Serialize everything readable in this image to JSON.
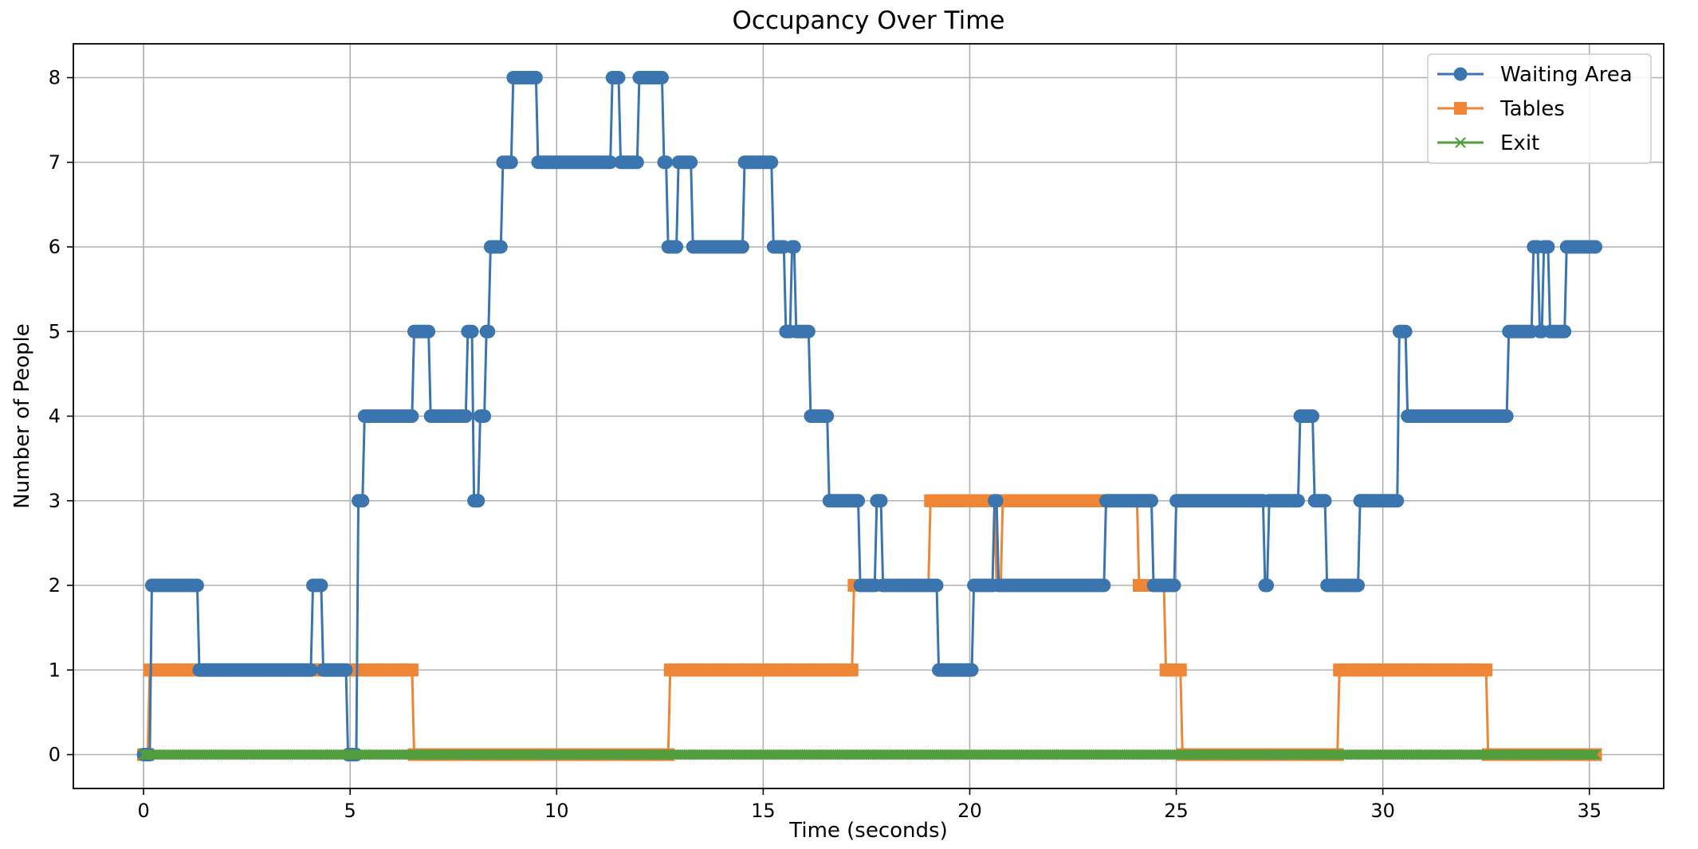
{
  "chart_data": {
    "type": "line",
    "title": "Occupancy Over Time",
    "xlabel": "Time (seconds)",
    "ylabel": "Number of People",
    "xlim": [
      -1.7,
      36.8
    ],
    "ylim": [
      -0.4,
      8.4
    ],
    "xticks": [
      0,
      5,
      10,
      15,
      20,
      25,
      30,
      35
    ],
    "yticks": [
      0,
      1,
      2,
      3,
      4,
      5,
      6,
      7,
      8
    ],
    "grid": true,
    "legend_position": "top-right",
    "series": [
      {
        "name": "Waiting Area",
        "color": "#3b75af",
        "marker": "circle",
        "steps": [
          [
            0,
            0
          ],
          [
            0.2,
            2
          ],
          [
            1.35,
            1
          ],
          [
            4.1,
            2
          ],
          [
            4.35,
            1
          ],
          [
            4.95,
            0
          ],
          [
            5.2,
            3
          ],
          [
            5.35,
            4
          ],
          [
            6.55,
            5
          ],
          [
            6.95,
            4
          ],
          [
            7.85,
            5
          ],
          [
            8.0,
            3
          ],
          [
            8.15,
            4
          ],
          [
            8.3,
            5
          ],
          [
            8.4,
            6
          ],
          [
            8.7,
            7
          ],
          [
            8.95,
            8
          ],
          [
            9.55,
            7
          ],
          [
            11.35,
            8
          ],
          [
            11.55,
            7
          ],
          [
            12.0,
            8
          ],
          [
            12.6,
            7
          ],
          [
            12.7,
            6
          ],
          [
            12.95,
            7
          ],
          [
            13.3,
            6
          ],
          [
            14.55,
            7
          ],
          [
            15.25,
            6
          ],
          [
            15.55,
            5
          ],
          [
            15.7,
            6
          ],
          [
            15.8,
            5
          ],
          [
            16.15,
            4
          ],
          [
            16.6,
            3
          ],
          [
            17.35,
            2
          ],
          [
            17.75,
            3
          ],
          [
            17.9,
            2
          ],
          [
            19.25,
            1
          ],
          [
            20.1,
            2
          ],
          [
            20.6,
            3
          ],
          [
            20.7,
            2
          ],
          [
            23.3,
            3
          ],
          [
            24.45,
            2
          ],
          [
            25.0,
            3
          ],
          [
            27.15,
            2
          ],
          [
            27.25,
            3
          ],
          [
            28.0,
            4
          ],
          [
            28.35,
            3
          ],
          [
            28.65,
            2
          ],
          [
            29.45,
            3
          ],
          [
            30.4,
            5
          ],
          [
            30.6,
            4
          ],
          [
            33.05,
            5
          ],
          [
            33.65,
            6
          ],
          [
            33.8,
            5
          ],
          [
            33.9,
            6
          ],
          [
            34.05,
            5
          ],
          [
            34.45,
            6
          ],
          [
            35.15,
            6
          ]
        ]
      },
      {
        "name": "Tables",
        "color": "#ef8636",
        "marker": "square",
        "steps": [
          [
            0,
            0
          ],
          [
            0.15,
            1
          ],
          [
            6.55,
            0
          ],
          [
            12.75,
            1
          ],
          [
            17.2,
            2
          ],
          [
            19.05,
            3
          ],
          [
            20.65,
            2
          ],
          [
            20.8,
            3
          ],
          [
            24.1,
            2
          ],
          [
            24.75,
            1
          ],
          [
            25.15,
            0
          ],
          [
            28.95,
            1
          ],
          [
            32.55,
            0
          ],
          [
            35.15,
            0
          ]
        ]
      },
      {
        "name": "Exit",
        "color": "#529e3e",
        "marker": "x",
        "steps": [
          [
            0,
            0
          ],
          [
            35.15,
            0
          ]
        ]
      }
    ]
  }
}
